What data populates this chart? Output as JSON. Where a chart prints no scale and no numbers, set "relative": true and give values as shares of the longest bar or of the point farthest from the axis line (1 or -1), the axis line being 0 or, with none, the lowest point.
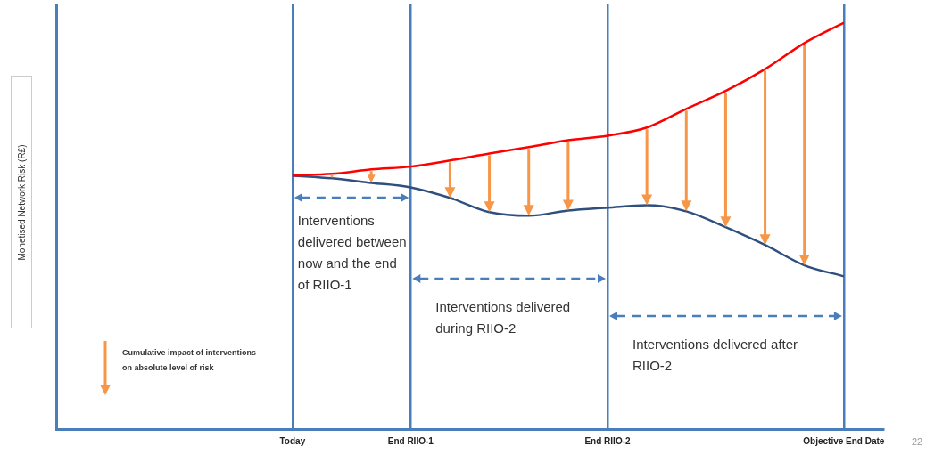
{
  "chart_data": {
    "type": "line",
    "relative": true,
    "ylabel": "Monetised Network Risk (R£)",
    "categories": [
      null,
      null,
      null,
      null,
      null,
      null,
      "Today",
      null,
      null,
      "End RIIO-1",
      null,
      null,
      null,
      null,
      "End RIIO-2",
      null,
      null,
      null,
      null,
      null,
      "Objective End Date",
      null
    ],
    "series": [
      {
        "color": "#ff0000",
        "values": [
          null,
          null,
          null,
          null,
          null,
          null,
          0.624,
          0.628,
          0.639,
          0.646,
          0.661,
          0.678,
          0.694,
          0.711,
          0.722,
          0.742,
          0.788,
          0.832,
          0.886,
          0.95,
          1,
          null
        ]
      },
      {
        "color": "#2f4f7f",
        "values": [
          null,
          null,
          null,
          null,
          null,
          null,
          0.624,
          0.617,
          0.606,
          0.595,
          0.569,
          0.534,
          0.525,
          0.538,
          0.545,
          0.551,
          0.536,
          0.497,
          0.453,
          0.403,
          0.376,
          null
        ]
      }
    ],
    "annotations": [
      "Interventions delivered between now and the end of RIIO-1",
      "Interventions delivered during RIIO-2",
      "Interventions delivered after RIIO-2",
      "Cumulative impact of interventions on absolute level of risk",
      "22"
    ],
    "grid": "x",
    "legend": false,
    "tick_labels": "x",
    "marker": "none",
    "line_style": "solid"
  }
}
